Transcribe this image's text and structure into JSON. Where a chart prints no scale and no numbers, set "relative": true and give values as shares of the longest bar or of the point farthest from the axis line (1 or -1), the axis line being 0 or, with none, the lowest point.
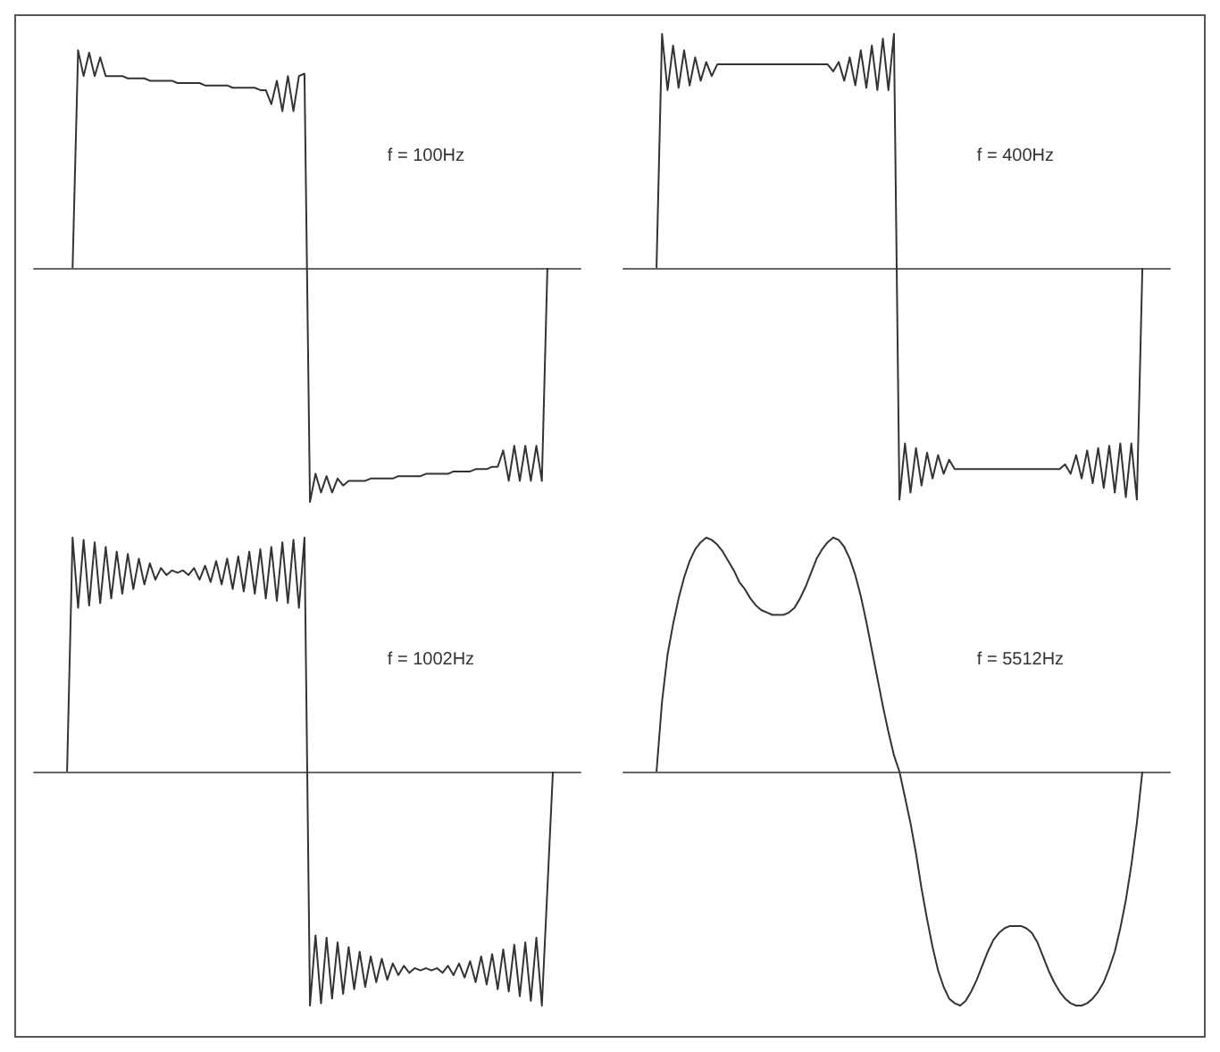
{
  "chart_data": [
    {
      "type": "line",
      "relative": true,
      "annotations": [
        "f = 100Hz"
      ],
      "categories": [
        null,
        null,
        null,
        null,
        null,
        null,
        null,
        null,
        null,
        null,
        null,
        null,
        null,
        null,
        null,
        null,
        null,
        null,
        null,
        null,
        null,
        null,
        null,
        null,
        null,
        null,
        null,
        null,
        null,
        null,
        null,
        null,
        null,
        null,
        null,
        null,
        null,
        null,
        null,
        null,
        null,
        null,
        null,
        null,
        null,
        null,
        null,
        null,
        null,
        null,
        null,
        null,
        null,
        null,
        null,
        null,
        null,
        null,
        null,
        null,
        null,
        null,
        null,
        null,
        null,
        null,
        null,
        null,
        null,
        null,
        null,
        null,
        null,
        null,
        null,
        null,
        null,
        null,
        null,
        null,
        null,
        null,
        null,
        null,
        null,
        null,
        null,
        null,
        null,
        null,
        null,
        null,
        null,
        null,
        null,
        null,
        null,
        null,
        null,
        null
      ],
      "series": [
        {
          "color": "#333333",
          "values": [
            null,
            null,
            null,
            null,
            null,
            null,
            null,
            0,
            0.93,
            0.82,
            0.92,
            0.82,
            0.9,
            0.82,
            0.82,
            0.82,
            0.82,
            0.81,
            0.81,
            0.81,
            0.81,
            0.8,
            0.8,
            0.8,
            0.8,
            0.8,
            0.79,
            0.79,
            0.79,
            0.79,
            0.79,
            0.78,
            0.78,
            0.78,
            0.78,
            0.78,
            0.77,
            0.77,
            0.77,
            0.77,
            0.77,
            0.76,
            0.76,
            0.7,
            0.8,
            0.67,
            0.82,
            0.67,
            0.82,
            0.83,
            -1.0,
            -0.88,
            -0.96,
            -0.89,
            -0.96,
            -0.9,
            -0.93,
            -0.91,
            -0.91,
            -0.91,
            -0.91,
            -0.9,
            -0.9,
            -0.9,
            -0.9,
            -0.9,
            -0.89,
            -0.89,
            -0.89,
            -0.89,
            -0.89,
            -0.88,
            -0.88,
            -0.88,
            -0.88,
            -0.88,
            -0.87,
            -0.87,
            -0.87,
            -0.87,
            -0.86,
            -0.86,
            -0.86,
            -0.85,
            -0.85,
            -0.78,
            -0.91,
            -0.76,
            -0.91,
            -0.76,
            -0.91,
            -0.76,
            -0.91,
            0,
            null,
            null,
            null,
            null,
            null,
            null
          ]
        }
      ]
    },
    {
      "type": "line",
      "relative": true,
      "annotations": [
        "f = 400Hz"
      ],
      "categories": [
        null,
        null,
        null,
        null,
        null,
        null,
        null,
        null,
        null,
        null,
        null,
        null,
        null,
        null,
        null,
        null,
        null,
        null,
        null,
        null,
        null,
        null,
        null,
        null,
        null,
        null,
        null,
        null,
        null,
        null,
        null,
        null,
        null,
        null,
        null,
        null,
        null,
        null,
        null,
        null,
        null,
        null,
        null,
        null,
        null,
        null,
        null,
        null,
        null,
        null,
        null,
        null,
        null,
        null,
        null,
        null,
        null,
        null,
        null,
        null,
        null,
        null,
        null,
        null,
        null,
        null,
        null,
        null,
        null,
        null,
        null,
        null,
        null,
        null,
        null,
        null,
        null,
        null,
        null,
        null,
        null,
        null,
        null,
        null,
        null,
        null,
        null,
        null,
        null,
        null,
        null,
        null,
        null,
        null,
        null,
        null,
        null,
        null,
        null,
        null
      ],
      "series": [
        {
          "color": "#333333",
          "values": [
            null,
            null,
            null,
            null,
            null,
            null,
            0,
            1.0,
            0.76,
            0.95,
            0.77,
            0.93,
            0.78,
            0.9,
            0.8,
            0.88,
            0.82,
            0.87,
            0.87,
            0.87,
            0.87,
            0.87,
            0.87,
            0.87,
            0.87,
            0.87,
            0.87,
            0.87,
            0.87,
            0.87,
            0.87,
            0.87,
            0.87,
            0.87,
            0.87,
            0.87,
            0.87,
            0.87,
            0.84,
            0.88,
            0.8,
            0.9,
            0.78,
            0.93,
            0.77,
            0.95,
            0.76,
            0.98,
            0.76,
            1.0,
            -0.99,
            -0.75,
            -0.96,
            -0.77,
            -0.93,
            -0.79,
            -0.9,
            -0.8,
            -0.88,
            -0.82,
            -0.86,
            -0.86,
            -0.86,
            -0.86,
            -0.86,
            -0.86,
            -0.86,
            -0.86,
            -0.86,
            -0.86,
            -0.86,
            -0.86,
            -0.86,
            -0.86,
            -0.86,
            -0.86,
            -0.86,
            -0.86,
            -0.86,
            -0.86,
            -0.84,
            -0.88,
            -0.8,
            -0.9,
            -0.78,
            -0.92,
            -0.77,
            -0.94,
            -0.76,
            -0.96,
            -0.75,
            -0.98,
            -0.75,
            -0.99,
            0,
            null,
            null,
            null,
            null,
            null
          ]
        }
      ]
    },
    {
      "type": "line",
      "relative": true,
      "annotations": [
        "f = 1002Hz"
      ],
      "categories": [
        null,
        null,
        null,
        null,
        null,
        null,
        null,
        null,
        null,
        null,
        null,
        null,
        null,
        null,
        null,
        null,
        null,
        null,
        null,
        null,
        null,
        null,
        null,
        null,
        null,
        null,
        null,
        null,
        null,
        null,
        null,
        null,
        null,
        null,
        null,
        null,
        null,
        null,
        null,
        null,
        null,
        null,
        null,
        null,
        null,
        null,
        null,
        null,
        null,
        null,
        null,
        null,
        null,
        null,
        null,
        null,
        null,
        null,
        null,
        null,
        null,
        null,
        null,
        null,
        null,
        null,
        null,
        null,
        null,
        null,
        null,
        null,
        null,
        null,
        null,
        null,
        null,
        null,
        null,
        null,
        null,
        null,
        null,
        null,
        null,
        null,
        null,
        null,
        null,
        null,
        null,
        null,
        null,
        null,
        null,
        null,
        null,
        null,
        null,
        null
      ],
      "series": [
        {
          "color": "#333333",
          "values": [
            null,
            null,
            null,
            null,
            null,
            null,
            0,
            1.0,
            0.7,
            0.99,
            0.71,
            0.98,
            0.72,
            0.96,
            0.74,
            0.94,
            0.76,
            0.93,
            0.78,
            0.91,
            0.8,
            0.89,
            0.82,
            0.87,
            0.84,
            0.86,
            0.85,
            0.86,
            0.84,
            0.87,
            0.82,
            0.88,
            0.81,
            0.9,
            0.8,
            0.91,
            0.78,
            0.92,
            0.77,
            0.94,
            0.76,
            0.95,
            0.74,
            0.96,
            0.73,
            0.98,
            0.72,
            0.99,
            0.7,
            1.0,
            -1.0,
            -0.7,
            -0.99,
            -0.71,
            -0.97,
            -0.73,
            -0.95,
            -0.75,
            -0.93,
            -0.77,
            -0.92,
            -0.79,
            -0.9,
            -0.8,
            -0.89,
            -0.82,
            -0.87,
            -0.83,
            -0.86,
            -0.84,
            -0.85,
            -0.84,
            -0.85,
            -0.84,
            -0.86,
            -0.83,
            -0.87,
            -0.82,
            -0.88,
            -0.81,
            -0.9,
            -0.79,
            -0.91,
            -0.78,
            -0.93,
            -0.76,
            -0.94,
            -0.74,
            -0.96,
            -0.73,
            -0.98,
            -0.71,
            -1.0,
            -0.5,
            0,
            null,
            null,
            null,
            null,
            null
          ]
        }
      ]
    },
    {
      "type": "line",
      "relative": true,
      "annotations": [
        "f = 5512Hz"
      ],
      "categories": [
        null,
        null,
        null,
        null,
        null,
        null,
        null,
        null,
        null,
        null,
        null,
        null,
        null,
        null,
        null,
        null,
        null,
        null,
        null,
        null,
        null,
        null,
        null,
        null,
        null,
        null,
        null,
        null,
        null,
        null,
        null,
        null,
        null,
        null,
        null,
        null,
        null,
        null,
        null,
        null,
        null,
        null,
        null,
        null,
        null,
        null,
        null,
        null,
        null,
        null,
        null,
        null,
        null,
        null,
        null,
        null,
        null,
        null,
        null,
        null,
        null,
        null,
        null,
        null,
        null,
        null,
        null,
        null,
        null,
        null,
        null,
        null,
        null,
        null,
        null,
        null,
        null,
        null,
        null,
        null,
        null,
        null,
        null,
        null,
        null,
        null,
        null,
        null,
        null,
        null,
        null,
        null,
        null,
        null,
        null,
        null,
        null,
        null,
        null,
        null
      ],
      "series": [
        {
          "color": "#333333",
          "values": [
            null,
            null,
            null,
            null,
            null,
            null,
            0,
            0.3,
            0.5,
            0.63,
            0.74,
            0.83,
            0.9,
            0.95,
            0.98,
            1.0,
            0.99,
            0.97,
            0.94,
            0.9,
            0.86,
            0.81,
            0.78,
            0.74,
            0.71,
            0.69,
            0.68,
            0.67,
            0.67,
            0.67,
            0.68,
            0.7,
            0.74,
            0.79,
            0.85,
            0.91,
            0.95,
            0.98,
            1.0,
            0.99,
            0.96,
            0.91,
            0.84,
            0.75,
            0.64,
            0.52,
            0.4,
            0.28,
            0.17,
            0.07,
            0,
            -0.11,
            -0.22,
            -0.35,
            -0.5,
            -0.63,
            -0.75,
            -0.85,
            -0.92,
            -0.97,
            -0.99,
            -1.0,
            -0.98,
            -0.94,
            -0.89,
            -0.83,
            -0.77,
            -0.72,
            -0.69,
            -0.67,
            -0.66,
            -0.66,
            -0.66,
            -0.67,
            -0.69,
            -0.73,
            -0.79,
            -0.85,
            -0.9,
            -0.94,
            -0.97,
            -0.99,
            -1.0,
            -1.0,
            -0.99,
            -0.97,
            -0.94,
            -0.9,
            -0.84,
            -0.77,
            -0.67,
            -0.55,
            -0.4,
            -0.22,
            0,
            null,
            null,
            null,
            null,
            null
          ]
        }
      ]
    }
  ]
}
